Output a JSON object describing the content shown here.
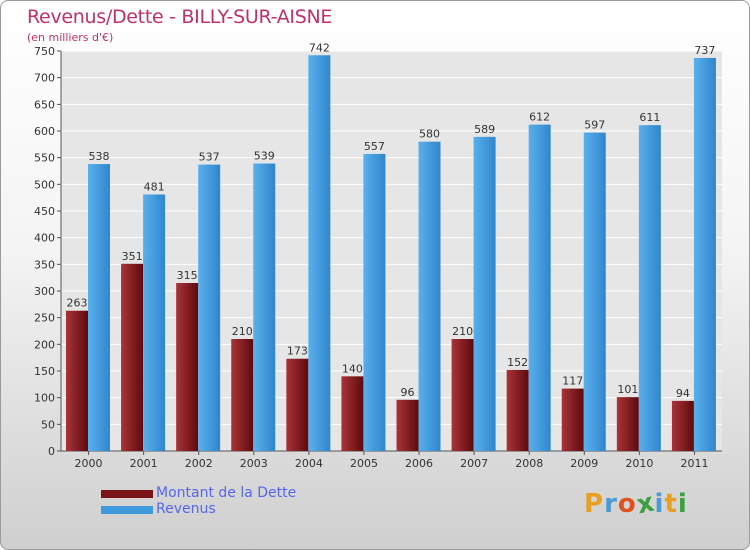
{
  "chart_data": {
    "type": "bar",
    "title": "Revenus/Dette - BILLY-SUR-AISNE",
    "subtitle": "(en milliers d'€)",
    "categories": [
      "2000",
      "2001",
      "2002",
      "2003",
      "2004",
      "2005",
      "2006",
      "2007",
      "2008",
      "2009",
      "2010",
      "2011"
    ],
    "series": [
      {
        "name": "Montant de la Dette",
        "color": "#7a1418",
        "values": [
          263,
          351,
          315,
          210,
          173,
          140,
          96,
          210,
          152,
          117,
          101,
          94
        ]
      },
      {
        "name": "Revenus",
        "color": "#3f99dd",
        "values": [
          538,
          481,
          537,
          539,
          742,
          557,
          580,
          589,
          612,
          597,
          611,
          737
        ]
      }
    ],
    "ylim": [
      0,
      750
    ],
    "yticks": [
      0,
      50,
      100,
      150,
      200,
      250,
      300,
      350,
      400,
      450,
      500,
      550,
      600,
      650,
      700,
      750
    ],
    "grid": true,
    "legend_position": "bottom-left"
  },
  "logo": {
    "letters": [
      {
        "char": "P",
        "color": "#e8a020"
      },
      {
        "char": "r",
        "color": "#4a9ad4"
      },
      {
        "char": "o",
        "color": "#e05020"
      },
      {
        "char": "x",
        "color": "#3aa040"
      },
      {
        "char": "i",
        "color": "#4a9ad4"
      },
      {
        "char": "t",
        "color": "#e8a020"
      },
      {
        "char": "i",
        "color": "#3aa040"
      }
    ]
  }
}
